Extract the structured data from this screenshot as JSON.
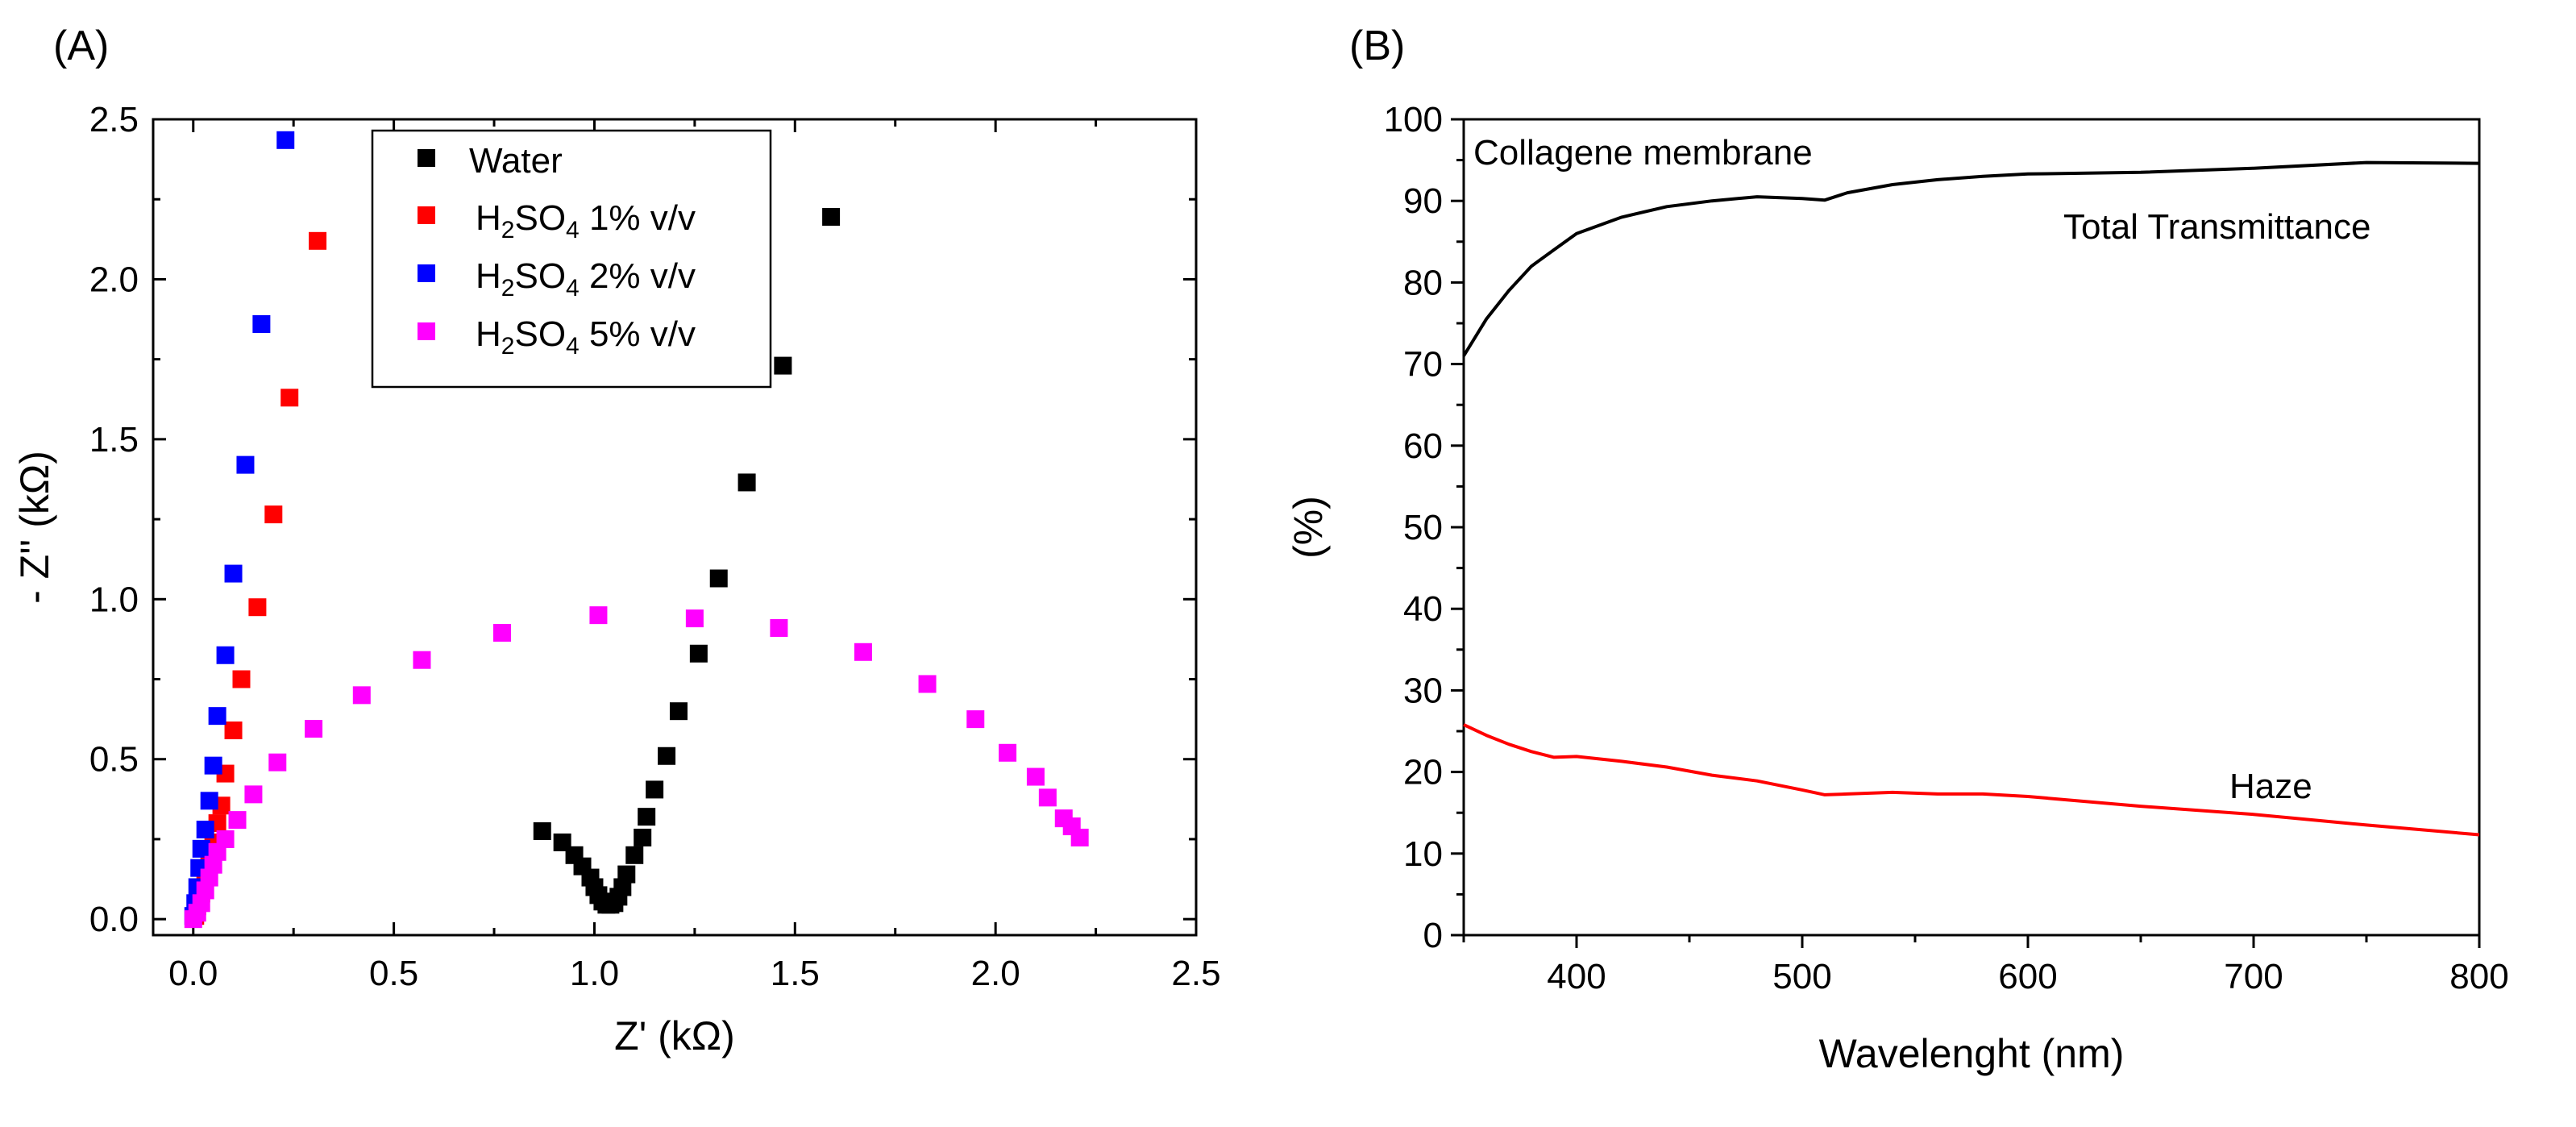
{
  "chart_data": [
    {
      "panel": "(A)",
      "type": "scatter",
      "xlabel": "Z' (kΩ)",
      "ylabel": "- Z'' (kΩ)",
      "xlim": [
        -0.1,
        2.5
      ],
      "ylim": [
        -0.05,
        2.5
      ],
      "xticks": [
        "0.0",
        "0.5",
        "1.0",
        "1.5",
        "2.0",
        "2.5"
      ],
      "yticks": [
        "0.0",
        "0.5",
        "1.0",
        "1.5",
        "2.0",
        "2.5"
      ],
      "legend_position": "top-center",
      "series": [
        {
          "name": "Water",
          "label_html": "Water",
          "color": "#000000",
          "points": [
            [
              0.87,
              0.275
            ],
            [
              0.92,
              0.24
            ],
            [
              0.95,
              0.2
            ],
            [
              0.97,
              0.165
            ],
            [
              0.99,
              0.13
            ],
            [
              1.0,
              0.1
            ],
            [
              1.01,
              0.075
            ],
            [
              1.02,
              0.055
            ],
            [
              1.03,
              0.045
            ],
            [
              1.04,
              0.045
            ],
            [
              1.05,
              0.05
            ],
            [
              1.06,
              0.07
            ],
            [
              1.07,
              0.1
            ],
            [
              1.08,
              0.14
            ],
            [
              1.1,
              0.2
            ],
            [
              1.12,
              0.255
            ],
            [
              1.13,
              0.32
            ],
            [
              1.15,
              0.405
            ],
            [
              1.18,
              0.51
            ],
            [
              1.21,
              0.65
            ],
            [
              1.26,
              0.83
            ],
            [
              1.31,
              1.065
            ],
            [
              1.38,
              1.365
            ],
            [
              1.47,
              1.73
            ],
            [
              1.59,
              2.195
            ]
          ]
        },
        {
          "name": "H2SO4 1% v/v",
          "label_parts": [
            "H",
            "2",
            "SO",
            "4",
            " 1% v/v"
          ],
          "color": "#ff0000",
          "points": [
            [
              0.005,
              0.01
            ],
            [
              0.01,
              0.04
            ],
            [
              0.02,
              0.08
            ],
            [
              0.03,
              0.13
            ],
            [
              0.04,
              0.18
            ],
            [
              0.05,
              0.24
            ],
            [
              0.06,
              0.3
            ],
            [
              0.07,
              0.355
            ],
            [
              0.08,
              0.455
            ],
            [
              0.1,
              0.59
            ],
            [
              0.12,
              0.75
            ],
            [
              0.16,
              0.975
            ],
            [
              0.2,
              1.265
            ],
            [
              0.24,
              1.63
            ],
            [
              0.31,
              2.12
            ]
          ]
        },
        {
          "name": "H2SO4 2% v/v",
          "label_parts": [
            "H",
            "2",
            "SO",
            "4",
            " 2% v/v"
          ],
          "color": "#0000ff",
          "points": [
            [
              0.0,
              0.01
            ],
            [
              0.005,
              0.05
            ],
            [
              0.01,
              0.1
            ],
            [
              0.015,
              0.16
            ],
            [
              0.02,
              0.22
            ],
            [
              0.03,
              0.28
            ],
            [
              0.04,
              0.37
            ],
            [
              0.05,
              0.48
            ],
            [
              0.06,
              0.635
            ],
            [
              0.08,
              0.825
            ],
            [
              0.1,
              1.08
            ],
            [
              0.13,
              1.42
            ],
            [
              0.17,
              1.86
            ],
            [
              0.23,
              2.435
            ]
          ]
        },
        {
          "name": "H2SO4 5% v/v",
          "label_parts": [
            "H",
            "2",
            "SO",
            "4",
            " 5% v/v"
          ],
          "color": "#ff00ff",
          "points": [
            [
              0.0,
              0.0
            ],
            [
              0.01,
              0.02
            ],
            [
              0.02,
              0.05
            ],
            [
              0.03,
              0.09
            ],
            [
              0.04,
              0.13
            ],
            [
              0.05,
              0.17
            ],
            [
              0.06,
              0.21
            ],
            [
              0.08,
              0.25
            ],
            [
              0.11,
              0.31
            ],
            [
              0.15,
              0.39
            ],
            [
              0.21,
              0.49
            ],
            [
              0.3,
              0.595
            ],
            [
              0.42,
              0.7
            ],
            [
              0.57,
              0.81
            ],
            [
              0.77,
              0.895
            ],
            [
              1.01,
              0.95
            ],
            [
              1.25,
              0.94
            ],
            [
              1.46,
              0.91
            ],
            [
              1.67,
              0.835
            ],
            [
              1.83,
              0.735
            ],
            [
              1.95,
              0.625
            ],
            [
              2.03,
              0.52
            ],
            [
              2.1,
              0.445
            ],
            [
              2.13,
              0.38
            ],
            [
              2.17,
              0.315
            ],
            [
              2.19,
              0.29
            ],
            [
              2.21,
              0.255
            ]
          ]
        }
      ]
    },
    {
      "panel": "(B)",
      "type": "line",
      "xlabel": "Wavelenght (nm)",
      "ylabel": "(%)",
      "xlim": [
        350,
        800
      ],
      "ylim": [
        0,
        100
      ],
      "xticks": [
        "400",
        "500",
        "600",
        "700",
        "800"
      ],
      "yticks": [
        "0",
        "10",
        "20",
        "30",
        "40",
        "50",
        "60",
        "70",
        "80",
        "90",
        "100"
      ],
      "series": [
        {
          "name": "Total Transmittance",
          "color": "#000000",
          "x": [
            350,
            360,
            370,
            380,
            390,
            400,
            420,
            440,
            460,
            480,
            500,
            510,
            520,
            540,
            560,
            580,
            600,
            650,
            700,
            750,
            800
          ],
          "values": [
            71,
            75.5,
            79,
            82,
            84,
            86,
            88,
            89.3,
            90,
            90.5,
            90.3,
            90.1,
            91,
            92,
            92.6,
            93,
            93.3,
            93.5,
            94,
            94.7,
            94.6
          ]
        },
        {
          "name": "Haze",
          "color": "#ff0000",
          "x": [
            350,
            360,
            370,
            380,
            390,
            400,
            420,
            440,
            460,
            480,
            500,
            510,
            520,
            540,
            560,
            580,
            600,
            650,
            700,
            750,
            800
          ],
          "values": [
            25.8,
            24.5,
            23.4,
            22.5,
            21.8,
            21.9,
            21.3,
            20.6,
            19.6,
            18.9,
            17.8,
            17.2,
            17.3,
            17.5,
            17.3,
            17.3,
            17,
            15.8,
            14.8,
            13.5,
            12.3
          ]
        }
      ],
      "annotations": {
        "sample": "Collagene membrane",
        "transmittance_label": "Total Transmittance",
        "haze_label": "Haze"
      }
    }
  ]
}
